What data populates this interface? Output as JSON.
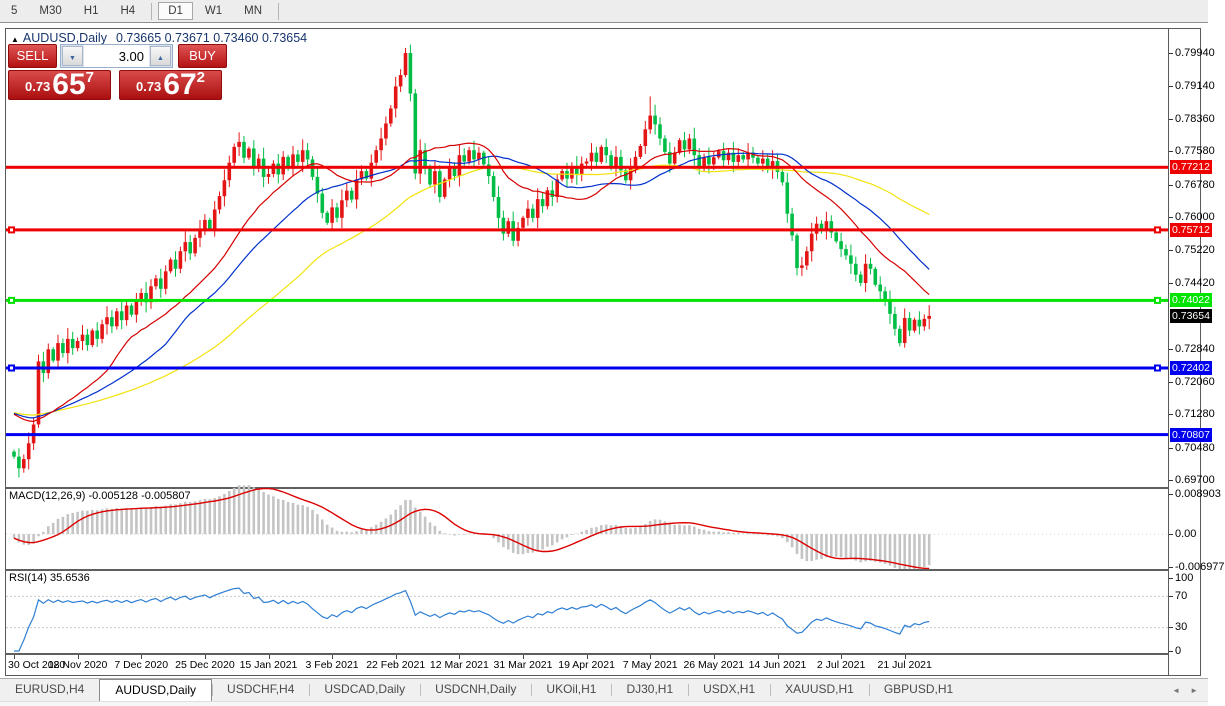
{
  "toolbar": {
    "groups": [
      [
        "5",
        "M30",
        "H1",
        "H4"
      ],
      [
        "D1",
        "W1",
        "MN"
      ]
    ],
    "active": "D1"
  },
  "chart": {
    "title": {
      "symbol": "AUDUSD,Daily",
      "ohlc": "0.73665 0.73671 0.73460 0.73654"
    }
  },
  "trade_panel": {
    "sell_label": "SELL",
    "buy_label": "BUY",
    "volume": "3.00",
    "sell_price": {
      "prefix": "0.73",
      "big": "65",
      "sup": "7"
    },
    "buy_price": {
      "prefix": "0.73",
      "big": "67",
      "sup": "2"
    }
  },
  "chart_data": {
    "type": "candlestick",
    "symbol": "AUDUSD",
    "timeframe": "Daily",
    "ohlc_display": {
      "open": "0.73665",
      "high": "0.73671",
      "low": "0.73460",
      "close": "0.73654"
    },
    "up_color": "#e31515",
    "down_color": "#00bd45",
    "price_range": [
      0.69552,
      0.805
    ],
    "first_open": 0.704,
    "seed_prev_close": 0.7135,
    "closes": [
      0.7028,
      0.7,
      0.7022,
      0.706,
      0.7105,
      0.7256,
      0.7228,
      0.7285,
      0.7258,
      0.73,
      0.7276,
      0.731,
      0.7288,
      0.7305,
      0.732,
      0.7295,
      0.733,
      0.731,
      0.7345,
      0.7362,
      0.734,
      0.7376,
      0.7355,
      0.739,
      0.7368,
      0.74,
      0.742,
      0.7398,
      0.7436,
      0.7455,
      0.743,
      0.7472,
      0.75,
      0.7478,
      0.752,
      0.7542,
      0.7515,
      0.7552,
      0.7572,
      0.7595,
      0.7574,
      0.762,
      0.7652,
      0.769,
      0.7732,
      0.777,
      0.7782,
      0.7744,
      0.7766,
      0.772,
      0.7742,
      0.7698,
      0.7705,
      0.773,
      0.7704,
      0.7746,
      0.7718,
      0.7752,
      0.7734,
      0.7762,
      0.774,
      0.7698,
      0.7658,
      0.7612,
      0.7588,
      0.7625,
      0.76,
      0.7642,
      0.7665,
      0.7644,
      0.7692,
      0.7712,
      0.7694,
      0.7732,
      0.7762,
      0.779,
      0.7826,
      0.7862,
      0.7915,
      0.7942,
      0.7995,
      0.7898,
      0.7706,
      0.7762,
      0.772,
      0.768,
      0.7712,
      0.765,
      0.7692,
      0.7722,
      0.77,
      0.775,
      0.7735,
      0.7762,
      0.774,
      0.7756,
      0.7728,
      0.77,
      0.765,
      0.76,
      0.7562,
      0.7592,
      0.7545,
      0.7576,
      0.76,
      0.7622,
      0.76,
      0.7645,
      0.7628,
      0.7666,
      0.765,
      0.7692,
      0.7712,
      0.7694,
      0.7722,
      0.7704,
      0.773,
      0.7735,
      0.7756,
      0.7734,
      0.777,
      0.775,
      0.7724,
      0.7746,
      0.7714,
      0.769,
      0.772,
      0.7746,
      0.7772,
      0.7812,
      0.7845,
      0.7824,
      0.779,
      0.7758,
      0.773,
      0.7756,
      0.7786,
      0.7764,
      0.779,
      0.775,
      0.772,
      0.7746,
      0.7728,
      0.7745,
      0.776,
      0.7738,
      0.7756,
      0.7734,
      0.775,
      0.774,
      0.7756,
      0.7744,
      0.773,
      0.7742,
      0.7718,
      0.7736,
      0.771,
      0.7685,
      0.761,
      0.7558,
      0.748,
      0.7486,
      0.752,
      0.7562,
      0.7586,
      0.757,
      0.7592,
      0.7565,
      0.7544,
      0.7525,
      0.751,
      0.749,
      0.7464,
      0.7444,
      0.749,
      0.7478,
      0.744,
      0.7424,
      0.74,
      0.737,
      0.7334,
      0.73,
      0.736,
      0.733,
      0.7356,
      0.734,
      0.7358,
      0.7365
    ],
    "extremes": {
      "1": {
        "low": 0.6978
      },
      "5": {
        "high": 0.7272
      },
      "80": {
        "high": 0.8007
      },
      "82": {
        "low": 0.7692
      },
      "102": {
        "low": 0.7532
      },
      "130": {
        "high": 0.7891
      },
      "160": {
        "low": 0.7462
      },
      "182": {
        "low": 0.7289
      }
    },
    "moving_averages": [
      {
        "name": "slow-ma",
        "period": 60,
        "color": "#f2e30c"
      },
      {
        "name": "medium-ma",
        "period": 32,
        "color": "#0030cc"
      },
      {
        "name": "fast-ma",
        "period": 20,
        "color": "#d60000"
      }
    ],
    "levels": [
      {
        "label": "0.77212",
        "value": 0.77212,
        "color": "#ee0000",
        "handles": false
      },
      {
        "label": "0.75712",
        "value": 0.75712,
        "color": "#ee0000",
        "handles": true
      },
      {
        "label": "0.74022",
        "value": 0.74022,
        "color": "#00e400",
        "handles": true
      },
      {
        "label": "0.72402",
        "value": 0.72402,
        "color": "#0000ee",
        "handles": true
      },
      {
        "label": "0.70807",
        "value": 0.70807,
        "color": "#0000ee",
        "handles": false
      }
    ],
    "current_price": {
      "label": "0.73654",
      "value": 0.73654,
      "bg": "#000000"
    },
    "price_axis_labels": [
      0.7994,
      0.7914,
      0.7836,
      0.7758,
      0.7678,
      0.76,
      0.7522,
      0.7442,
      0.7284,
      0.7206,
      0.7128,
      0.7048,
      0.697
    ],
    "date_labels": [
      {
        "label": "30 Oct 2020",
        "index": 0
      },
      {
        "label": "18 Nov 2020",
        "index": 13
      },
      {
        "label": "7 Dec 2020",
        "index": 26
      },
      {
        "label": "25 Dec 2020",
        "index": 39
      },
      {
        "label": "15 Jan 2021",
        "index": 52
      },
      {
        "label": "3 Feb 2021",
        "index": 65
      },
      {
        "label": "22 Feb 2021",
        "index": 78
      },
      {
        "label": "12 Mar 2021",
        "index": 91
      },
      {
        "label": "31 Mar 2021",
        "index": 104
      },
      {
        "label": "19 Apr 2021",
        "index": 117
      },
      {
        "label": "7 May 2021",
        "index": 130
      },
      {
        "label": "26 May 2021",
        "index": 143
      },
      {
        "label": "14 Jun 2021",
        "index": 156
      },
      {
        "label": "2 Jul 2021",
        "index": 169
      },
      {
        "label": "21 Jul 2021",
        "index": 182
      }
    ],
    "indicators": {
      "macd": {
        "text": "MACD(12,26,9) -0.005128 -0.005807",
        "fast": 12,
        "slow": 26,
        "signal": 9,
        "main_value": -0.005128,
        "signal_value": -0.005807,
        "histogram_color": "#c4c4c4",
        "signal_color": "#dd0000",
        "range": [
          -0.0072,
          0.0096
        ],
        "axis": [
          {
            "value": 0.008903,
            "label": "0.008903"
          },
          {
            "value": 0,
            "label": "0.00"
          },
          {
            "value": -0.006977,
            "label": "-0.006977"
          }
        ]
      },
      "rsi": {
        "text": "RSI(14) 35.6536",
        "period": 14,
        "value": 35.6536,
        "line_color": "#2e7fd4",
        "levels": [
          70,
          30
        ],
        "axis": [
          {
            "value": 100,
            "label": "100"
          },
          {
            "value": 70,
            "label": "70"
          },
          {
            "value": 30,
            "label": "30"
          },
          {
            "value": 0,
            "label": "0"
          }
        ]
      }
    }
  },
  "bottom_tabs": {
    "tabs": [
      "EURUSD,H4",
      "AUDUSD,Daily",
      "USDCHF,H4",
      "USDCAD,Daily",
      "USDCNH,Daily",
      "UKOil,H1",
      "DJ30,H1",
      "USDX,H1",
      "XAUUSD,H1",
      "GBPUSD,H1"
    ],
    "active": "AUDUSD,Daily",
    "arrows": [
      "◄",
      "►"
    ]
  }
}
